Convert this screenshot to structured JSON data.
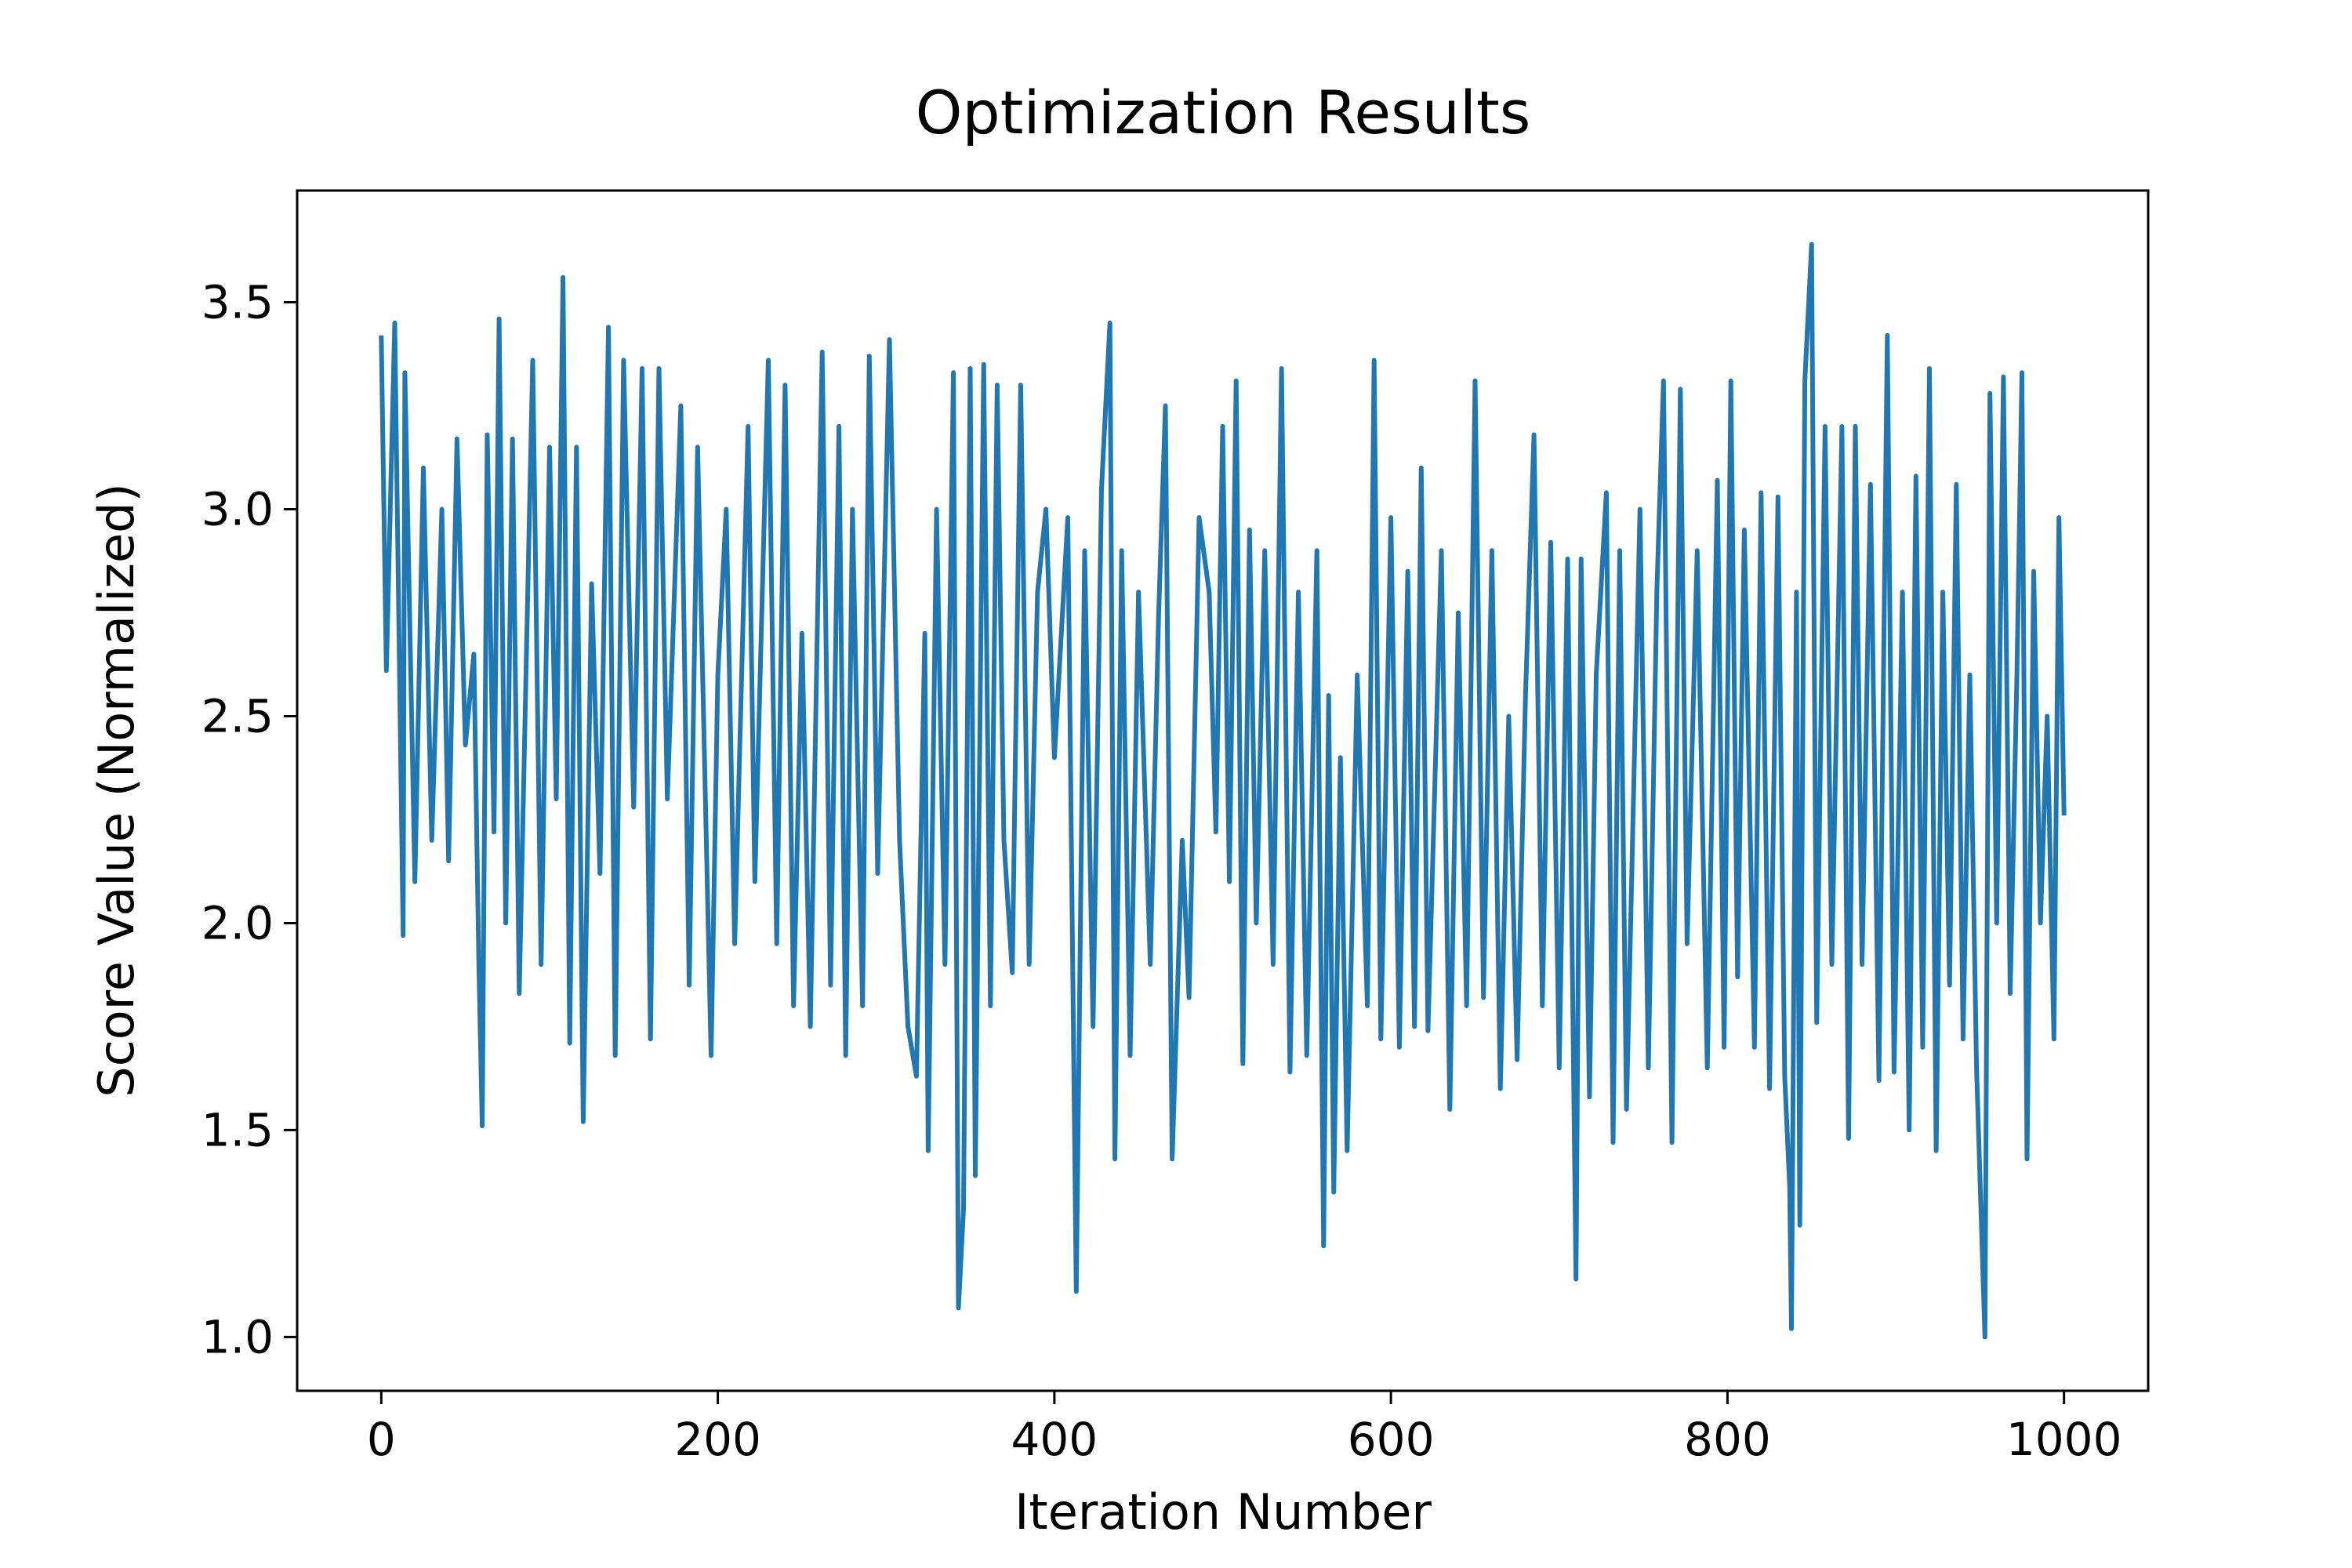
{
  "chart_data": {
    "type": "line",
    "title": "Optimization Results",
    "x_label": "Iteration Number",
    "y_label": "Score Value (Normalized)",
    "color": "#1f77b4",
    "x": [
      0,
      3,
      8,
      13,
      14,
      20,
      25,
      30,
      36,
      40,
      45,
      50,
      55,
      58,
      60,
      63,
      67,
      70,
      74,
      78,
      82,
      86,
      90,
      95,
      100,
      104,
      108,
      112,
      116,
      120,
      125,
      130,
      135,
      139,
      144,
      150,
      155,
      160,
      165,
      170,
      178,
      183,
      188,
      196,
      200,
      205,
      210,
      218,
      222,
      230,
      235,
      240,
      245,
      250,
      255,
      262,
      267,
      272,
      276,
      280,
      286,
      290,
      295,
      302,
      308,
      313,
      318,
      323,
      325,
      330,
      335,
      340,
      343,
      346,
      350,
      353,
      358,
      362,
      366,
      370,
      375,
      380,
      385,
      390,
      395,
      400,
      408,
      413,
      418,
      423,
      428,
      433,
      436,
      440,
      445,
      450,
      457,
      462,
      466,
      470,
      476,
      480,
      486,
      492,
      496,
      500,
      504,
      508,
      512,
      516,
      520,
      525,
      530,
      535,
      540,
      545,
      550,
      556,
      560,
      563,
      566,
      570,
      574,
      580,
      586,
      590,
      594,
      600,
      605,
      610,
      614,
      618,
      622,
      630,
      635,
      640,
      645,
      650,
      655,
      660,
      665,
      670,
      675,
      680,
      685,
      690,
      695,
      700,
      705,
      710,
      713,
      718,
      722,
      728,
      732,
      736,
      740,
      748,
      753,
      758,
      762,
      767,
      772,
      776,
      782,
      788,
      794,
      798,
      802,
      806,
      810,
      816,
      820,
      825,
      830,
      834,
      837,
      838,
      841,
      843,
      846,
      850,
      853,
      858,
      862,
      868,
      872,
      876,
      880,
      885,
      890,
      895,
      899,
      904,
      908,
      912,
      916,
      920,
      924,
      928,
      932,
      936,
      940,
      944,
      948,
      953,
      956,
      960,
      964,
      968,
      972,
      975,
      978,
      982,
      986,
      990,
      994,
      997,
      1000
    ],
    "values": [
      3.42,
      2.61,
      3.45,
      1.97,
      3.33,
      2.1,
      3.1,
      2.2,
      3.0,
      2.15,
      3.17,
      2.43,
      2.65,
      1.9,
      1.51,
      3.18,
      2.22,
      3.46,
      2.0,
      3.17,
      1.83,
      2.6,
      3.36,
      1.9,
      3.15,
      2.3,
      3.56,
      1.71,
      3.15,
      1.52,
      2.82,
      2.12,
      3.44,
      1.68,
      3.36,
      2.28,
      3.34,
      1.72,
      3.34,
      2.3,
      3.25,
      1.85,
      3.15,
      1.68,
      2.6,
      3.0,
      1.95,
      3.2,
      2.1,
      3.36,
      1.95,
      3.3,
      1.8,
      2.7,
      1.75,
      3.38,
      1.85,
      3.2,
      1.68,
      3.0,
      1.8,
      3.37,
      2.12,
      3.41,
      2.2,
      1.75,
      1.63,
      2.7,
      1.45,
      3.0,
      1.9,
      3.33,
      1.07,
      1.31,
      3.34,
      1.39,
      3.35,
      1.8,
      3.3,
      2.2,
      1.88,
      3.3,
      1.9,
      2.8,
      3.0,
      2.4,
      2.98,
      1.11,
      2.9,
      1.75,
      3.05,
      3.45,
      1.43,
      2.9,
      1.68,
      2.8,
      1.9,
      2.75,
      3.25,
      1.43,
      2.2,
      1.82,
      2.98,
      2.8,
      2.22,
      3.2,
      2.1,
      3.31,
      1.66,
      2.95,
      2.0,
      2.9,
      1.9,
      3.34,
      1.64,
      2.8,
      1.68,
      2.9,
      1.22,
      2.55,
      1.35,
      2.4,
      1.45,
      2.6,
      1.8,
      3.36,
      1.72,
      2.98,
      1.7,
      2.85,
      1.75,
      3.1,
      1.74,
      2.9,
      1.55,
      2.75,
      1.8,
      3.31,
      1.82,
      2.9,
      1.6,
      2.5,
      1.67,
      2.55,
      3.18,
      1.8,
      2.92,
      1.65,
      2.88,
      1.14,
      2.88,
      1.58,
      2.6,
      3.04,
      1.47,
      2.9,
      1.55,
      3.0,
      1.65,
      2.8,
      3.31,
      1.47,
      3.29,
      1.95,
      2.9,
      1.65,
      3.07,
      1.7,
      3.31,
      1.87,
      2.95,
      1.7,
      3.04,
      1.6,
      3.03,
      1.63,
      1.36,
      1.02,
      2.8,
      1.27,
      3.31,
      3.64,
      1.76,
      3.2,
      1.9,
      3.2,
      1.48,
      3.2,
      1.9,
      3.06,
      1.62,
      3.42,
      1.64,
      2.8,
      1.5,
      3.08,
      1.7,
      3.34,
      1.45,
      2.8,
      1.85,
      3.06,
      1.72,
      2.6,
      1.65,
      1.0,
      3.28,
      2.0,
      3.32,
      1.83,
      2.6,
      3.33,
      1.43,
      2.85,
      2.0,
      2.5,
      1.72,
      2.98,
      2.26
    ],
    "xlim": [
      -50,
      1050
    ],
    "xticks": [
      0,
      200,
      400,
      600,
      800,
      1000
    ],
    "ylim": [
      0.87,
      3.77
    ],
    "yticks": [
      {
        "value": 1,
        "label": "1.0"
      },
      {
        "value": 1.5,
        "label": "1.5"
      },
      {
        "value": 2,
        "label": "2.0"
      },
      {
        "value": 2.5,
        "label": "2.5"
      },
      {
        "value": 3,
        "label": "3.0"
      },
      {
        "value": 3.5,
        "label": "3.5"
      }
    ],
    "grid": false
  }
}
